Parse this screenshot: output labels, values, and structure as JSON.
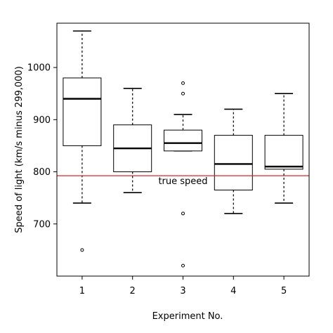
{
  "chart_data": {
    "type": "box",
    "title": "",
    "xlabel": "Experiment No.",
    "ylabel": "Speed of light (km/s minus 299,000)",
    "categories": [
      "1",
      "2",
      "3",
      "4",
      "5"
    ],
    "ylim": [
      600,
      1085
    ],
    "yticks": [
      700,
      800,
      900,
      1000
    ],
    "ytick_labels": [
      "700",
      "800",
      "900",
      "1000"
    ],
    "boxes": [
      {
        "name": "1",
        "whisker_low": 740,
        "q1": 850,
        "median": 940,
        "q3": 980,
        "whisker_high": 1070,
        "outliers": [
          650
        ]
      },
      {
        "name": "2",
        "whisker_low": 760,
        "q1": 800,
        "median": 845,
        "q3": 890,
        "whisker_high": 960,
        "outliers": []
      },
      {
        "name": "3",
        "whisker_low": 840,
        "q1": 840,
        "median": 855,
        "q3": 880,
        "whisker_high": 910,
        "outliers": [
          970,
          950,
          720,
          620
        ]
      },
      {
        "name": "4",
        "whisker_low": 720,
        "q1": 765,
        "median": 815,
        "q3": 870,
        "whisker_high": 920,
        "outliers": []
      },
      {
        "name": "5",
        "whisker_low": 740,
        "q1": 805,
        "median": 810,
        "q3": 870,
        "whisker_high": 950,
        "outliers": []
      }
    ],
    "reference_line": {
      "value": 792.458,
      "label": "true speed",
      "color": "#d62728"
    },
    "grid": false,
    "legend": "none"
  }
}
